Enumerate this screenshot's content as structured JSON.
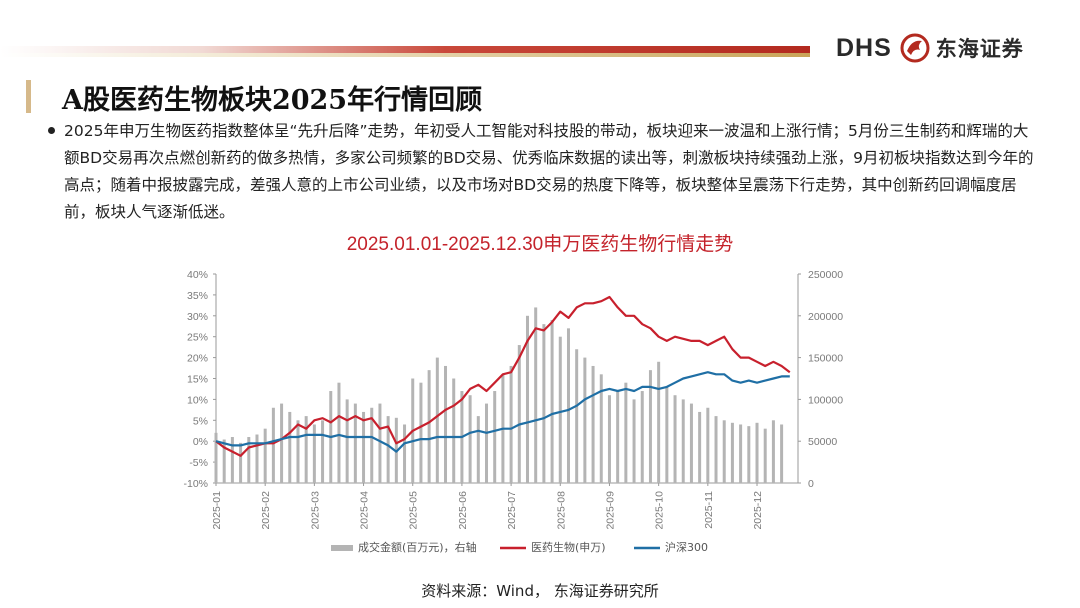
{
  "header": {
    "logo_latin": "DHS",
    "logo_cn": "东海证券",
    "colors": {
      "accent_red": "#b32a1f",
      "accent_gold": "#c9a458"
    }
  },
  "slide": {
    "title": "A股医药生物板块2025年行情回顾",
    "paragraph": "2025年申万生物医药指数整体呈“先升后降”走势，年初受人工智能对科技股的带动，板块迎来一波温和上涨行情；5月份三生制药和辉瑞的大额BD交易再次点燃创新药的做多热情，多家公司频繁的BD交易、优秀临床数据的读出等，刺激板块持续强劲上涨，9月初板块指数达到今年的高点；随着中报披露完成，差强人意的上市公司业绩，以及市场对BD交易的热度下降等，板块整体呈震荡下行走势，其中创新药回调幅度居前，板块人气逐渐低迷。",
    "source": "资料来源：Wind， 东海证券研究所"
  },
  "chart_data": {
    "type": "line+bar",
    "title": "2025.01.01-2025.12.30申万医药生物行情走势",
    "months": [
      "2025-01",
      "2025-02",
      "2025-03",
      "2025-04",
      "2025-05",
      "2025-06",
      "2025-07",
      "2025-08",
      "2025-09",
      "2025-10",
      "2025-11",
      "2025-12"
    ],
    "y_left": {
      "min": -10,
      "max": 40,
      "step": 5,
      "unit": "%"
    },
    "y_right": {
      "min": 0,
      "max": 250000,
      "step": 50000
    },
    "grid": false,
    "legend_position": "bottom",
    "series": [
      {
        "name": "成交金额(百万元)，右轴",
        "kind": "bar",
        "axis": "right",
        "color": "#b4b4b4",
        "points": [
          [
            0.0,
            60000
          ],
          [
            0.5,
            52000
          ],
          [
            1.0,
            55000
          ],
          [
            1.5,
            48000
          ],
          [
            2.0,
            55000
          ],
          [
            2.5,
            58000
          ],
          [
            3.0,
            65000
          ],
          [
            3.5,
            90000
          ],
          [
            4.0,
            95000
          ],
          [
            4.5,
            85000
          ],
          [
            5.0,
            75000
          ],
          [
            5.5,
            80000
          ],
          [
            6.0,
            70000
          ],
          [
            6.5,
            75000
          ],
          [
            7.0,
            110000
          ],
          [
            7.5,
            120000
          ],
          [
            8.0,
            100000
          ],
          [
            8.5,
            95000
          ],
          [
            9.0,
            85000
          ],
          [
            9.5,
            90000
          ],
          [
            10.0,
            95000
          ],
          [
            10.5,
            80000
          ],
          [
            11.0,
            78000
          ],
          [
            11.5,
            70000
          ],
          [
            12.0,
            125000
          ],
          [
            12.5,
            120000
          ],
          [
            13.0,
            135000
          ],
          [
            13.5,
            150000
          ],
          [
            14.0,
            140000
          ],
          [
            14.5,
            125000
          ],
          [
            15.0,
            110000
          ],
          [
            15.5,
            105000
          ],
          [
            16.0,
            80000
          ],
          [
            16.5,
            95000
          ],
          [
            17.0,
            110000
          ],
          [
            17.5,
            130000
          ],
          [
            18.0,
            140000
          ],
          [
            18.5,
            165000
          ],
          [
            19.0,
            200000
          ],
          [
            19.5,
            210000
          ],
          [
            20.0,
            190000
          ],
          [
            20.5,
            195000
          ],
          [
            21.0,
            175000
          ],
          [
            21.5,
            185000
          ],
          [
            22.0,
            160000
          ],
          [
            22.5,
            150000
          ],
          [
            23.0,
            140000
          ],
          [
            23.5,
            130000
          ],
          [
            24.0,
            105000
          ],
          [
            24.5,
            110000
          ],
          [
            25.0,
            120000
          ],
          [
            25.5,
            100000
          ],
          [
            26.0,
            110000
          ],
          [
            26.5,
            135000
          ],
          [
            27.0,
            145000
          ],
          [
            27.5,
            115000
          ],
          [
            28.0,
            105000
          ],
          [
            28.5,
            100000
          ],
          [
            29.0,
            95000
          ],
          [
            29.5,
            85000
          ],
          [
            30.0,
            90000
          ],
          [
            30.5,
            80000
          ],
          [
            31.0,
            75000
          ],
          [
            31.5,
            72000
          ],
          [
            32.0,
            70000
          ],
          [
            32.5,
            68000
          ],
          [
            33.0,
            72000
          ],
          [
            33.5,
            65000
          ],
          [
            34.0,
            75000
          ],
          [
            34.5,
            70000
          ]
        ],
        "x_scale": "0 = start of 2025-01, 3 = start of 2025-02, ..., 34.5 = late 2025-12"
      },
      {
        "name": "医药生物(申万)",
        "kind": "line",
        "axis": "left",
        "color": "#c8202d",
        "points": [
          [
            0,
            0
          ],
          [
            0.5,
            -1.5
          ],
          [
            1.0,
            -2.5
          ],
          [
            1.5,
            -3.5
          ],
          [
            2.0,
            -1.5
          ],
          [
            2.5,
            -1
          ],
          [
            3,
            -0.5
          ],
          [
            3.5,
            -0.5
          ],
          [
            4,
            0.5
          ],
          [
            4.5,
            2
          ],
          [
            5,
            4
          ],
          [
            5.5,
            3
          ],
          [
            6,
            5
          ],
          [
            6.5,
            5.5
          ],
          [
            7,
            4.5
          ],
          [
            7.5,
            6
          ],
          [
            8,
            5
          ],
          [
            8.5,
            6
          ],
          [
            9,
            5
          ],
          [
            9.5,
            5.5
          ],
          [
            10,
            3
          ],
          [
            10.5,
            3.5
          ],
          [
            11,
            -0.5
          ],
          [
            11.5,
            0.5
          ],
          [
            12,
            2.5
          ],
          [
            12.5,
            3.5
          ],
          [
            13,
            4.5
          ],
          [
            13.5,
            6
          ],
          [
            14,
            7.5
          ],
          [
            14.5,
            8.5
          ],
          [
            15,
            10
          ],
          [
            15.5,
            12.5
          ],
          [
            16,
            13.5
          ],
          [
            16.5,
            12
          ],
          [
            17,
            14
          ],
          [
            17.5,
            16
          ],
          [
            18,
            16.5
          ],
          [
            18.5,
            20
          ],
          [
            19,
            24
          ],
          [
            19.5,
            27
          ],
          [
            20,
            26.5
          ],
          [
            20.5,
            28.5
          ],
          [
            21,
            31
          ],
          [
            21.5,
            29.5
          ],
          [
            22,
            32
          ],
          [
            22.5,
            33
          ],
          [
            23,
            33
          ],
          [
            23.5,
            33.5
          ],
          [
            24,
            34.5
          ],
          [
            24.5,
            32
          ],
          [
            25,
            30
          ],
          [
            25.5,
            30
          ],
          [
            26,
            28
          ],
          [
            26.5,
            27
          ],
          [
            27,
            25
          ],
          [
            27.5,
            24
          ],
          [
            28,
            25
          ],
          [
            28.5,
            24.5
          ],
          [
            29,
            24
          ],
          [
            29.5,
            24
          ],
          [
            30,
            23
          ],
          [
            30.5,
            24
          ],
          [
            31,
            25
          ],
          [
            31.5,
            22
          ],
          [
            32,
            20
          ],
          [
            32.5,
            20
          ],
          [
            33,
            19
          ],
          [
            33.5,
            18
          ],
          [
            34,
            19
          ],
          [
            34.5,
            18
          ],
          [
            35,
            16.5
          ]
        ]
      },
      {
        "name": "沪深300",
        "kind": "line",
        "axis": "left",
        "color": "#1f6fa5",
        "points": [
          [
            0,
            0
          ],
          [
            0.5,
            -0.5
          ],
          [
            1.0,
            -1
          ],
          [
            1.5,
            -1
          ],
          [
            2.0,
            -0.5
          ],
          [
            2.5,
            -0.5
          ],
          [
            3,
            -0.5
          ],
          [
            3.5,
            0
          ],
          [
            4,
            0.5
          ],
          [
            4.5,
            1
          ],
          [
            5,
            1
          ],
          [
            5.5,
            1.5
          ],
          [
            6,
            1.5
          ],
          [
            6.5,
            1.5
          ],
          [
            7,
            1
          ],
          [
            7.5,
            1.5
          ],
          [
            8,
            1
          ],
          [
            8.5,
            1
          ],
          [
            9,
            1
          ],
          [
            9.5,
            1
          ],
          [
            10,
            0
          ],
          [
            10.5,
            -1
          ],
          [
            11,
            -2.5
          ],
          [
            11.5,
            -0.5
          ],
          [
            12,
            0
          ],
          [
            12.5,
            0.5
          ],
          [
            13,
            0.5
          ],
          [
            13.5,
            1
          ],
          [
            14,
            1
          ],
          [
            14.5,
            1
          ],
          [
            15,
            1
          ],
          [
            15.5,
            2
          ],
          [
            16,
            2.5
          ],
          [
            16.5,
            2
          ],
          [
            17,
            2.5
          ],
          [
            17.5,
            3
          ],
          [
            18,
            3
          ],
          [
            18.5,
            4
          ],
          [
            19,
            4.5
          ],
          [
            19.5,
            5
          ],
          [
            20,
            5.5
          ],
          [
            20.5,
            6.5
          ],
          [
            21,
            7
          ],
          [
            21.5,
            7.5
          ],
          [
            22,
            8.5
          ],
          [
            22.5,
            10
          ],
          [
            23,
            11
          ],
          [
            23.5,
            12
          ],
          [
            24,
            12.5
          ],
          [
            24.5,
            12
          ],
          [
            25,
            12.5
          ],
          [
            25.5,
            12
          ],
          [
            26,
            13
          ],
          [
            26.5,
            13
          ],
          [
            27,
            12.5
          ],
          [
            27.5,
            13
          ],
          [
            28,
            14
          ],
          [
            28.5,
            15
          ],
          [
            29,
            15.5
          ],
          [
            29.5,
            16
          ],
          [
            30,
            16.5
          ],
          [
            30.5,
            16
          ],
          [
            31,
            16
          ],
          [
            31.5,
            14.5
          ],
          [
            32,
            14
          ],
          [
            32.5,
            14.5
          ],
          [
            33,
            14
          ],
          [
            33.5,
            14.5
          ],
          [
            34,
            15
          ],
          [
            34.5,
            15.5
          ],
          [
            35,
            15.5
          ]
        ]
      }
    ]
  }
}
